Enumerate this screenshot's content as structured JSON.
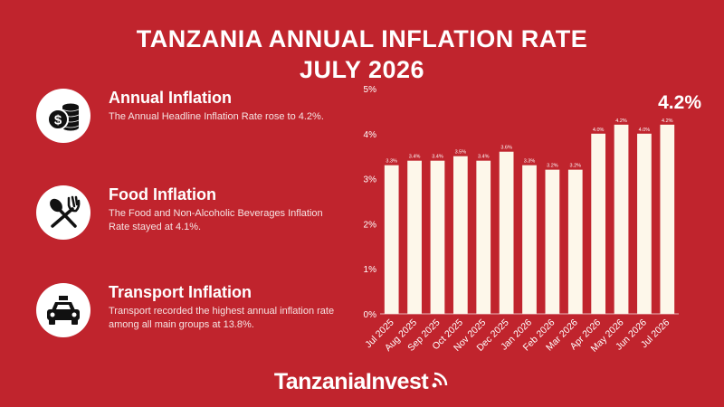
{
  "header": {
    "title_line1": "TANZANIA ANNUAL INFLATION RATE",
    "title_line2": "JULY 2026"
  },
  "sections": [
    {
      "icon": "dollar-coins-icon",
      "heading": "Annual Inflation",
      "text": "The Annual Headline Inflation Rate rose to 4.2%."
    },
    {
      "icon": "spoon-fork-icon",
      "heading": "Food Inflation",
      "text": "The Food and Non-Alcoholic Beverages Inflation Rate stayed at 4.1%."
    },
    {
      "icon": "taxi-icon",
      "heading": "Transport Inflation",
      "text": "Transport recorded the highest annual inflation rate among all main groups at 13.8%."
    }
  ],
  "chart_data": {
    "type": "bar",
    "categories": [
      "Jul 2025",
      "Aug 2025",
      "Sep 2025",
      "Oct 2025",
      "Nov 2025",
      "Dec 2025",
      "Jan 2026",
      "Feb 2026",
      "Mar 2026",
      "Apr 2026",
      "May 2026",
      "Jun 2026",
      "Jul 2026"
    ],
    "values": [
      3.3,
      3.4,
      3.4,
      3.5,
      3.4,
      3.6,
      3.3,
      3.2,
      3.2,
      4.0,
      4.2,
      4.0,
      4.2
    ],
    "value_labels": [
      "3.3%",
      "3.4%",
      "3.4%",
      "3.5%",
      "3.4%",
      "3.6%",
      "3.3%",
      "3.2%",
      "3.2%",
      "4.0%",
      "4.2%",
      "4.0%",
      "4.2%"
    ],
    "yticks": [
      "0%",
      "1%",
      "2%",
      "3%",
      "4%",
      "5%"
    ],
    "ylim": [
      0,
      5
    ],
    "highlight": "4.2%",
    "title": "",
    "xlabel": "",
    "ylabel": "",
    "bar_color": "#fdf7ea",
    "grid": false
  },
  "footer": {
    "brand": "TanzaniaInvest"
  },
  "colors": {
    "background": "#c0242d",
    "text": "#ffffff",
    "bar": "#fdf7ea",
    "icon_bg": "#ffffff",
    "icon_fg": "#111111"
  }
}
